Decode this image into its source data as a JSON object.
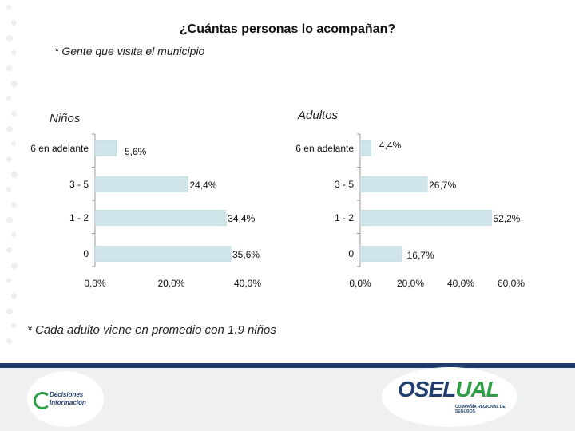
{
  "title": "¿Cuántas personas lo acompañan?",
  "subtitle": "* Gente que visita el municipio",
  "note": "* Cada adulto viene en promedio con 1.9 niños",
  "colors": {
    "bar": "#cfe5ea",
    "bar_stroke": "#a9cdd6",
    "axis": "#9a9a9a",
    "footer_bar": "#1f3d6e",
    "brand_green": "#2f9e44"
  },
  "logos": {
    "left_line1": "Decisiones",
    "left_line2": "Información",
    "right_mark_a": "OSEL",
    "right_mark_b": "UAL",
    "right_sub": "COMPAÑÍA REGIONAL DE SEGUROS"
  },
  "chart_data": [
    {
      "type": "bar",
      "orientation": "horizontal",
      "title": "Niños",
      "categories": [
        "6 en adelante",
        "3 - 5",
        "1 - 2",
        "0"
      ],
      "values": [
        5.6,
        24.4,
        34.4,
        35.6
      ],
      "data_labels": [
        "5,6%",
        "24,4%",
        "34,4%",
        "35,6%"
      ],
      "xlim": [
        0,
        40
      ],
      "xticks": [
        "0,0%",
        "20,0%",
        "40,0%"
      ],
      "grid": false
    },
    {
      "type": "bar",
      "orientation": "horizontal",
      "title": "Adultos",
      "categories": [
        "6 en adelante",
        "3 - 5",
        "1 - 2",
        "0"
      ],
      "values": [
        4.4,
        26.7,
        52.2,
        16.7
      ],
      "data_labels": [
        "4,4%",
        "26,7%",
        "52,2%",
        "16,7%"
      ],
      "xlim": [
        0,
        60
      ],
      "xticks": [
        "0,0%",
        "20,0%",
        "40,0%",
        "60,0%"
      ],
      "grid": false
    }
  ]
}
